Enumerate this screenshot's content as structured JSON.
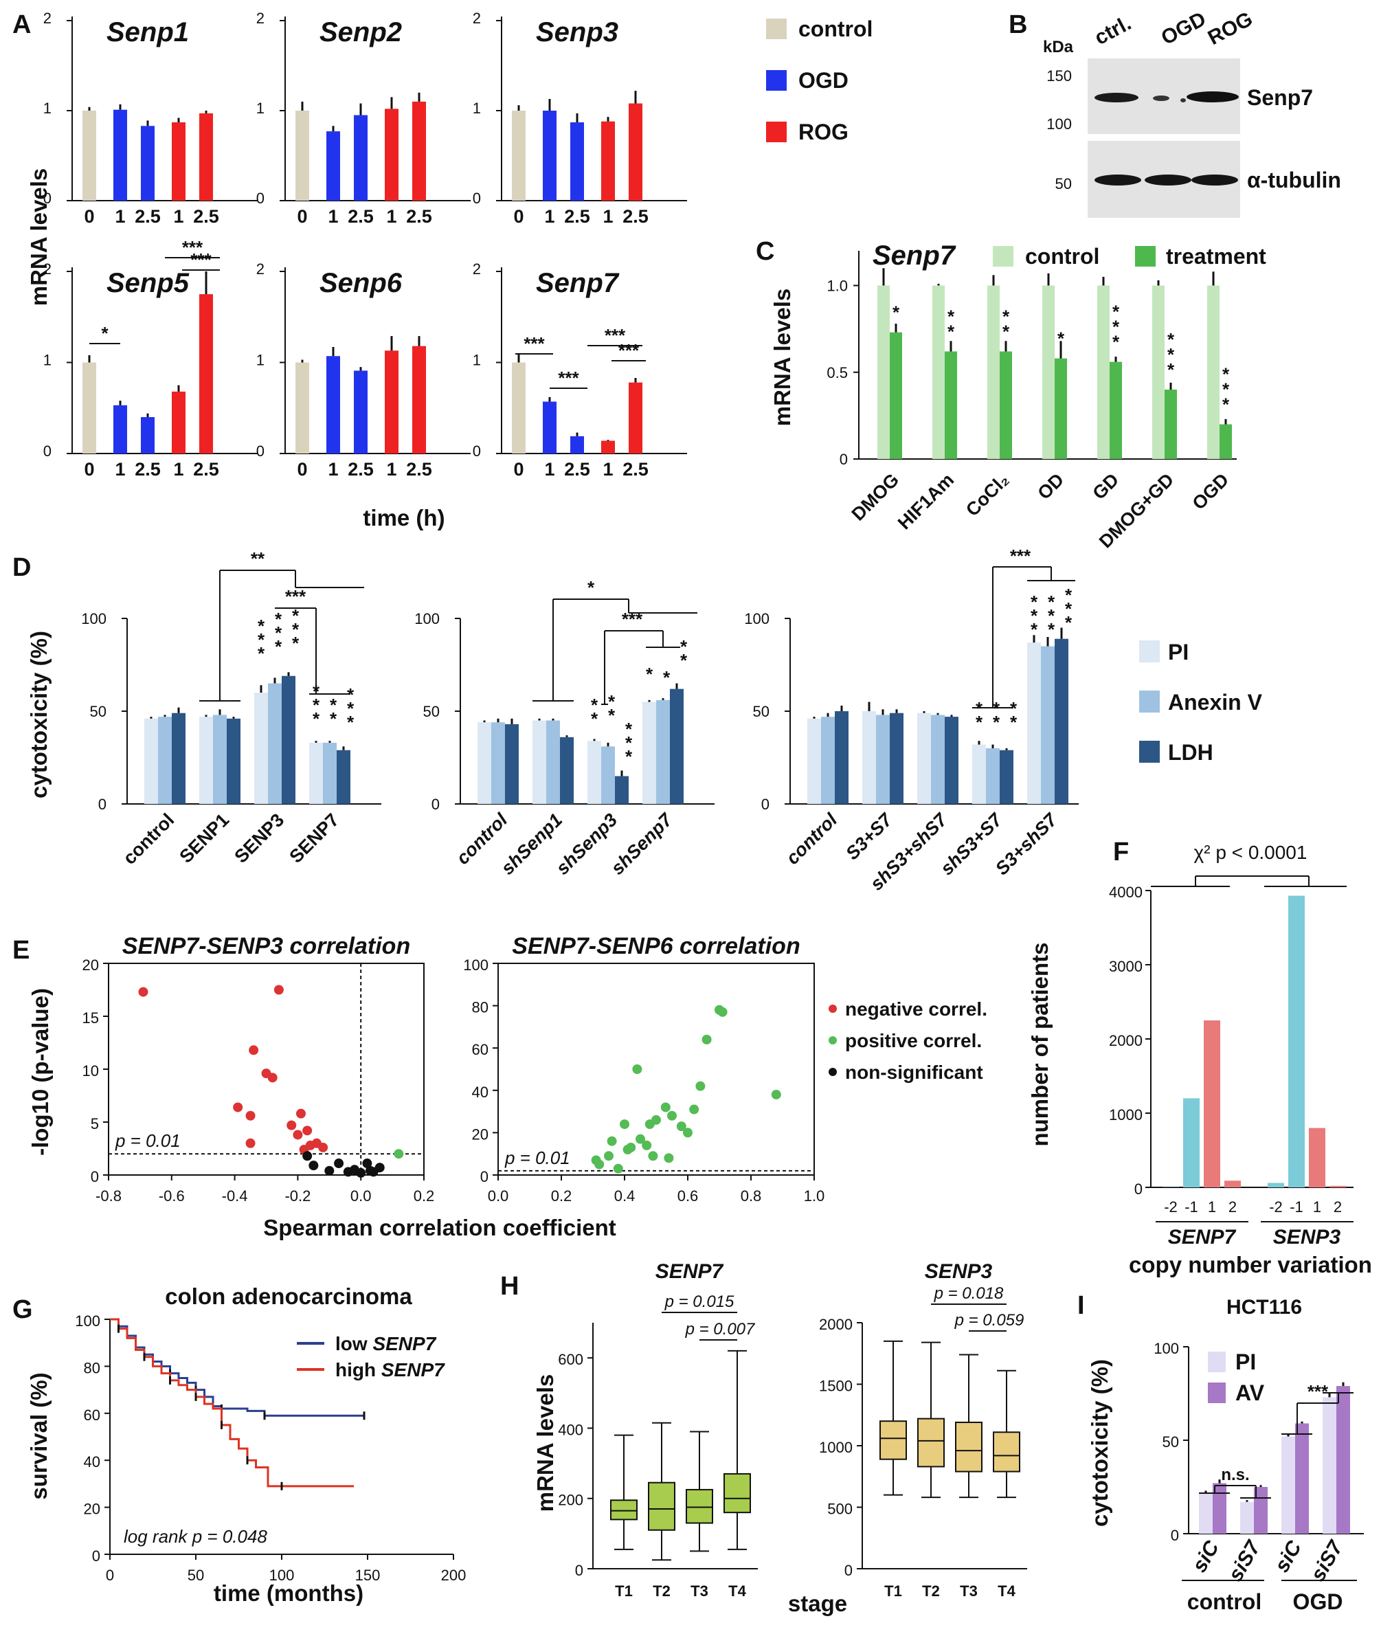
{
  "colors": {
    "control": "#d9d2bd",
    "ogd": "#2233ee",
    "rog": "#ee2222",
    "c_control": "#c4e6bd",
    "c_treat": "#4eb84e",
    "pi": "#dce8f4",
    "anexin": "#9fc2e2",
    "ldh": "#2c5686",
    "red_pt": "#dd3333",
    "green_pt": "#55bb55",
    "black_pt": "#111111",
    "cyan_bar": "#7ccbd8",
    "salmon_bar": "#e87a7a",
    "low_line": "#2b3f8f",
    "high_line": "#dd3322",
    "box_green": "#a7cc4e",
    "box_tan": "#e8cd7e",
    "hct_pi": "#e1dcf4",
    "hct_av": "#a678c6"
  },
  "panel_labels": [
    "A",
    "B",
    "C",
    "D",
    "E",
    "F",
    "G",
    "H",
    "I"
  ],
  "chart_data": [
    {
      "id": "A",
      "type": "bar",
      "ylabel": "mRNA levels",
      "xlabel": "time (h)",
      "categories": [
        "0",
        "1",
        "2.5",
        "1",
        "2.5"
      ],
      "ylim": [
        0,
        2
      ],
      "yticks": [
        "0",
        "1",
        "2"
      ],
      "bar_groups": [
        "control",
        "OGD",
        "OGD",
        "ROG",
        "ROG"
      ],
      "legend": [
        "control",
        "OGD",
        "ROG"
      ],
      "subplots": [
        {
          "gene": "Senp1",
          "values": [
            1.0,
            1.01,
            0.83,
            0.87,
            0.97
          ],
          "errors": [
            0.04,
            0.06,
            0.06,
            0.05,
            0.03
          ],
          "stars": []
        },
        {
          "gene": "Senp2",
          "values": [
            1.0,
            0.77,
            0.95,
            1.02,
            1.1
          ],
          "errors": [
            0.1,
            0.06,
            0.13,
            0.13,
            0.1
          ],
          "stars": []
        },
        {
          "gene": "Senp3",
          "values": [
            1.0,
            1.0,
            0.87,
            0.88,
            1.08
          ],
          "errors": [
            0.06,
            0.13,
            0.1,
            0.05,
            0.14
          ],
          "stars": []
        },
        {
          "gene": "Senp5",
          "values": [
            1.0,
            0.53,
            0.4,
            0.68,
            1.75
          ],
          "errors": [
            0.08,
            0.05,
            0.04,
            0.07,
            0.25
          ],
          "stars": [
            "*",
            "***",
            "***"
          ]
        },
        {
          "gene": "Senp6",
          "values": [
            1.0,
            1.07,
            0.91,
            1.13,
            1.18
          ],
          "errors": [
            0.03,
            0.1,
            0.04,
            0.16,
            0.11
          ],
          "stars": []
        },
        {
          "gene": "Senp7",
          "values": [
            1.0,
            0.57,
            0.19,
            0.14,
            0.78
          ],
          "errors": [
            0.09,
            0.05,
            0.04,
            0.01,
            0.05
          ],
          "stars": [
            "***",
            "***",
            "***",
            "***"
          ]
        }
      ]
    },
    {
      "id": "B",
      "type": "blot",
      "unit": "kDa",
      "lanes": [
        "ctrl.",
        "OGD",
        "ROG"
      ],
      "markers": [
        "150",
        "100",
        "50"
      ],
      "bands": [
        "Senp7",
        "α-tubulin"
      ]
    },
    {
      "id": "C",
      "type": "bar",
      "gene": "Senp7",
      "ylabel": "mRNA levels",
      "ylim": [
        0,
        1.2
      ],
      "yticks": [
        "0",
        "0.5",
        "1.0"
      ],
      "legend": [
        "control",
        "treatment"
      ],
      "categories": [
        "DMOG",
        "HIF1Am",
        "CoCl₂",
        "OD",
        "GD",
        "DMOG+GD",
        "OGD"
      ],
      "series": [
        {
          "name": "control",
          "values": [
            1.0,
            1.0,
            1.0,
            1.0,
            1.0,
            1.0,
            1.0
          ],
          "errors": [
            0.1,
            0.01,
            0.06,
            0.07,
            0.05,
            0.03,
            0.08
          ]
        },
        {
          "name": "treatment",
          "values": [
            0.73,
            0.62,
            0.62,
            0.58,
            0.56,
            0.4,
            0.2
          ],
          "errors": [
            0.05,
            0.06,
            0.06,
            0.1,
            0.03,
            0.04,
            0.03
          ]
        }
      ],
      "stars": [
        "*",
        "**",
        "**",
        "*",
        "***",
        "***",
        "***"
      ]
    },
    {
      "id": "D",
      "type": "bar",
      "ylabel": "cytotoxicity (%)",
      "ylim": [
        0,
        100
      ],
      "yticks": [
        "0",
        "50",
        "100"
      ],
      "legend": [
        "PI",
        "Anexin V",
        "LDH"
      ],
      "subplots": [
        {
          "categories": [
            "control",
            "SENP1",
            "SENP3",
            "SENP7"
          ],
          "values": [
            [
              46,
              47,
              49
            ],
            [
              47,
              48,
              46
            ],
            [
              60,
              65,
              69
            ],
            [
              33,
              33,
              29
            ]
          ],
          "errors": [
            [
              1,
              1,
              3
            ],
            [
              1,
              3,
              1
            ],
            [
              4,
              3,
              2
            ],
            [
              1,
              1,
              2
            ]
          ],
          "stars": [
            "**",
            "***",
            "***",
            "***",
            "***",
            "***",
            "***"
          ]
        },
        {
          "categories": [
            "control",
            "shSenp1",
            "shSenp3",
            "shSenp7"
          ],
          "values": [
            [
              44,
              44,
              43
            ],
            [
              45,
              45,
              36
            ],
            [
              34,
              31,
              15
            ],
            [
              55,
              56,
              62
            ]
          ],
          "errors": [
            [
              1,
              2,
              3
            ],
            [
              1,
              1,
              1
            ],
            [
              1,
              2,
              3
            ],
            [
              1,
              1,
              3
            ]
          ],
          "stars": [
            "*",
            "***",
            "**",
            "**",
            "***",
            "**",
            "*",
            "**"
          ]
        },
        {
          "categories": [
            "control",
            "S3+S7",
            "shS3+shS7",
            "shS3+S7",
            "S3+shS7"
          ],
          "values": [
            [
              46,
              47,
              50
            ],
            [
              50,
              48,
              49
            ],
            [
              49,
              48,
              47
            ],
            [
              32,
              30,
              29
            ],
            [
              87,
              85,
              89
            ]
          ],
          "errors": [
            [
              1,
              2,
              3
            ],
            [
              5,
              3,
              2
            ],
            [
              1,
              1,
              1
            ],
            [
              2,
              2,
              1
            ],
            [
              4,
              5,
              6
            ]
          ],
          "stars": [
            "***",
            "**",
            "**",
            "**",
            "***",
            "***",
            "***"
          ]
        }
      ]
    },
    {
      "id": "E",
      "type": "scatter",
      "xlabel": "Spearman correlation coefficient",
      "ylabel": "-log10 (p-value)",
      "threshold_label": "p = 0.01",
      "legend": [
        "negative correl.",
        "positive correl.",
        "non-significant"
      ],
      "subplots": [
        {
          "title": "SENP7-SENP3 correlation",
          "xlim": [
            -0.8,
            0.2
          ],
          "ylim": [
            0,
            20
          ],
          "xticks": [
            "-0.8",
            "-0.6",
            "-0.4",
            "-0.2",
            "0.0",
            "0.2"
          ],
          "yticks": [
            "0",
            "5",
            "10",
            "15",
            "20"
          ],
          "threshold": 2,
          "points": [
            [
              -0.69,
              17.3,
              "neg"
            ],
            [
              -0.26,
              17.5,
              "neg"
            ],
            [
              -0.34,
              11.8,
              "neg"
            ],
            [
              -0.3,
              9.6,
              "neg"
            ],
            [
              -0.28,
              9.2,
              "neg"
            ],
            [
              -0.39,
              6.4,
              "neg"
            ],
            [
              -0.35,
              5.6,
              "neg"
            ],
            [
              -0.19,
              5.8,
              "neg"
            ],
            [
              -0.22,
              4.7,
              "neg"
            ],
            [
              -0.17,
              4.2,
              "neg"
            ],
            [
              -0.2,
              3.8,
              "neg"
            ],
            [
              -0.14,
              3.0,
              "neg"
            ],
            [
              -0.16,
              2.8,
              "neg"
            ],
            [
              -0.12,
              2.6,
              "neg"
            ],
            [
              -0.35,
              3.0,
              "neg"
            ],
            [
              -0.18,
              2.4,
              "neg"
            ],
            [
              0.12,
              2.0,
              "pos"
            ],
            [
              -0.17,
              1.8,
              "ns"
            ],
            [
              -0.15,
              0.9,
              "ns"
            ],
            [
              -0.1,
              0.4,
              "ns"
            ],
            [
              -0.07,
              1.1,
              "ns"
            ],
            [
              -0.04,
              0.3,
              "ns"
            ],
            [
              -0.02,
              0.5,
              "ns"
            ],
            [
              0.0,
              0.2,
              "ns"
            ],
            [
              0.02,
              1.1,
              "ns"
            ],
            [
              0.04,
              0.3,
              "ns"
            ],
            [
              0.06,
              0.7,
              "ns"
            ],
            [
              0.03,
              0.4,
              "ns"
            ]
          ]
        },
        {
          "title": "SENP7-SENP6 correlation",
          "xlim": [
            0,
            1
          ],
          "ylim": [
            0,
            100
          ],
          "xticks": [
            "0.0",
            "0.2",
            "0.4",
            "0.6",
            "0.8",
            "1.0"
          ],
          "yticks": [
            "0",
            "20",
            "40",
            "60",
            "80",
            "100"
          ],
          "threshold": 2,
          "points": [
            [
              0.7,
              78
            ],
            [
              0.71,
              77
            ],
            [
              0.88,
              38
            ],
            [
              0.66,
              64
            ],
            [
              0.44,
              50
            ],
            [
              0.64,
              42
            ],
            [
              0.62,
              31
            ],
            [
              0.58,
              23
            ],
            [
              0.5,
              26
            ],
            [
              0.48,
              24
            ],
            [
              0.53,
              32
            ],
            [
              0.55,
              28
            ],
            [
              0.4,
              24
            ],
            [
              0.36,
              16
            ],
            [
              0.41,
              12
            ],
            [
              0.45,
              17
            ],
            [
              0.49,
              9
            ],
            [
              0.54,
              8
            ],
            [
              0.6,
              20
            ],
            [
              0.31,
              7
            ],
            [
              0.32,
              5
            ],
            [
              0.42,
              13
            ],
            [
              0.35,
              9
            ],
            [
              0.38,
              3
            ],
            [
              0.47,
              14
            ]
          ]
        }
      ]
    },
    {
      "id": "F",
      "type": "bar",
      "ylabel": "number of patients",
      "xlabel": "copy number variation",
      "ylim": [
        0,
        4000
      ],
      "yticks": [
        "0",
        "1000",
        "2000",
        "3000",
        "4000"
      ],
      "annotation": "χ² p < 0.0001",
      "groups": [
        {
          "gene": "SENP7",
          "categories": [
            "-2",
            "-1",
            "1",
            "2"
          ],
          "values": [
            3,
            1200,
            2250,
            90
          ]
        },
        {
          "gene": "SENP3",
          "categories": [
            "-2",
            "-1",
            "1",
            "2"
          ],
          "values": [
            60,
            3930,
            800,
            20
          ]
        }
      ]
    },
    {
      "id": "G",
      "type": "line",
      "title": "colon adenocarcinoma",
      "xlabel": "time (months)",
      "ylabel": "survival (%)",
      "xlim": [
        0,
        200
      ],
      "ylim": [
        0,
        100
      ],
      "xticks": [
        "0",
        "50",
        "100",
        "150",
        "200"
      ],
      "yticks": [
        "0",
        "20",
        "40",
        "60",
        "80",
        "100"
      ],
      "annotation": "log rank p = 0.048",
      "series": [
        {
          "name": "low SENP7",
          "legend_prefix": "low ",
          "legend_gene": "SENP7",
          "x": [
            0,
            5,
            10,
            15,
            20,
            25,
            30,
            35,
            40,
            45,
            50,
            55,
            60,
            65,
            70,
            80,
            90,
            100,
            120,
            148
          ],
          "y": [
            100,
            97,
            93,
            88,
            85,
            82,
            80,
            77,
            75,
            73,
            70,
            67,
            63,
            62,
            62,
            61,
            59,
            59,
            59,
            59
          ]
        },
        {
          "name": "high SENP7",
          "legend_prefix": "high ",
          "legend_gene": "SENP7",
          "x": [
            0,
            5,
            10,
            15,
            20,
            25,
            30,
            35,
            40,
            45,
            50,
            55,
            60,
            65,
            70,
            75,
            80,
            85,
            92,
            100,
            120,
            142
          ],
          "y": [
            100,
            96,
            92,
            87,
            84,
            80,
            77,
            74,
            72,
            70,
            67,
            64,
            62,
            55,
            49,
            45,
            40,
            37,
            29,
            29,
            29,
            29
          ]
        }
      ]
    },
    {
      "id": "H",
      "type": "box",
      "ylabel": "mRNA levels",
      "xlabel": "stage",
      "subplots": [
        {
          "gene": "SENP7",
          "ylim": [
            0,
            700
          ],
          "yticks": [
            "0",
            "200",
            "400",
            "600"
          ],
          "categories": [
            "T1",
            "T2",
            "T3",
            "T4"
          ],
          "boxes": [
            [
              55,
              140,
              165,
              195,
              380
            ],
            [
              25,
              110,
              170,
              245,
              415
            ],
            [
              50,
              130,
              175,
              225,
              390
            ],
            [
              55,
              160,
              200,
              270,
              620
            ]
          ],
          "pvals": [
            "p = 0.015",
            "p = 0.007"
          ]
        },
        {
          "gene": "SENP3",
          "ylim": [
            0,
            2000
          ],
          "yticks": [
            "0",
            "500",
            "1000",
            "1500",
            "2000"
          ],
          "categories": [
            "T1",
            "T2",
            "T3",
            "T4"
          ],
          "boxes": [
            [
              600,
              890,
              1060,
              1200,
              1850
            ],
            [
              580,
              830,
              1040,
              1220,
              1840
            ],
            [
              580,
              790,
              960,
              1190,
              1740
            ],
            [
              580,
              790,
              920,
              1110,
              1610
            ]
          ],
          "pvals": [
            "p = 0.018",
            "p = 0.059"
          ]
        }
      ]
    },
    {
      "id": "I",
      "type": "bar",
      "title": "HCT116",
      "ylabel": "cytotoxicity (%)",
      "ylim": [
        0,
        100
      ],
      "yticks": [
        "0",
        "50",
        "100"
      ],
      "legend": [
        "PI",
        "AV"
      ],
      "categories": [
        "siC",
        "siS7",
        "siC",
        "siS7"
      ],
      "groups": [
        "control",
        "OGD"
      ],
      "values": [
        [
          22,
          27
        ],
        [
          17,
          25
        ],
        [
          52,
          59
        ],
        [
          73,
          79
        ]
      ],
      "errors": [
        [
          1,
          2
        ],
        [
          1,
          1
        ],
        [
          1,
          1
        ],
        [
          2,
          2
        ]
      ],
      "sig": [
        "n.s.",
        "***"
      ]
    }
  ]
}
